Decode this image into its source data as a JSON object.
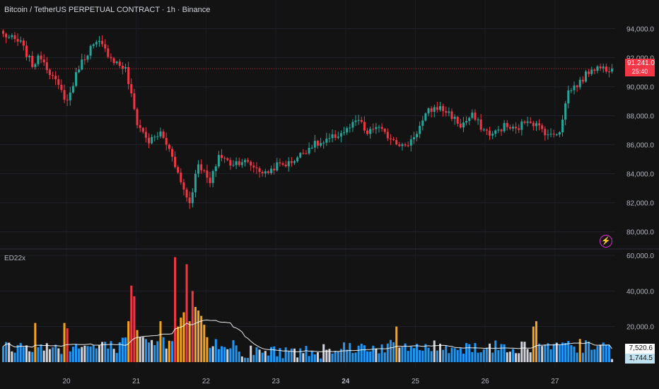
{
  "header": {
    "title": "Bitcoin / TetherUS PERPETUAL CONTRACT · 1h · Binance"
  },
  "indicator": {
    "label": "ED22x"
  },
  "price_badge": {
    "value": "91,241.0",
    "countdown": "25:40"
  },
  "volume_badges": {
    "ma_value": "7,520.6",
    "last_value": "1,744.5"
  },
  "icons": {
    "alert": "lightning-icon"
  },
  "colors": {
    "up": "#26a69a",
    "down": "#f23645",
    "vol_blue": "#2196f3",
    "vol_orange": "#f7a21b",
    "vol_red": "#f23645",
    "vol_white": "#d1d4dc",
    "ma_line": "#ffffff",
    "price_line": "#f23645",
    "background": "#131313"
  },
  "chart_data": [
    {
      "type": "candlestick",
      "title": "Bitcoin / TetherUS PERPETUAL CONTRACT · 1h · Binance",
      "x_tick_labels": [
        "20",
        "21",
        "22",
        "23",
        "24",
        "25",
        "26",
        "27"
      ],
      "y_tick_labels": [
        "94,000.0",
        "92,000.0",
        "90,000.0",
        "88,000.0",
        "86,000.0",
        "84,000.0",
        "82,000.0",
        "80,000.0"
      ],
      "ylim": [
        79500,
        95000
      ],
      "last_price": 91241,
      "anchors": [
        [
          0,
          93600
        ],
        [
          6,
          93000
        ],
        [
          10,
          91500
        ],
        [
          13,
          92100
        ],
        [
          18,
          90300
        ],
        [
          22,
          89000
        ],
        [
          26,
          91400
        ],
        [
          30,
          92700
        ],
        [
          33,
          93000
        ],
        [
          38,
          91800
        ],
        [
          42,
          91200
        ],
        [
          46,
          87500
        ],
        [
          50,
          86200
        ],
        [
          54,
          86800
        ],
        [
          58,
          85300
        ],
        [
          61,
          83400
        ],
        [
          64,
          82000
        ],
        [
          67,
          84800
        ],
        [
          71,
          83300
        ],
        [
          74,
          85300
        ],
        [
          78,
          84700
        ],
        [
          82,
          84900
        ],
        [
          86,
          84500
        ],
        [
          90,
          84000
        ],
        [
          94,
          84600
        ],
        [
          98,
          84700
        ],
        [
          102,
          85300
        ],
        [
          106,
          86000
        ],
        [
          110,
          86100
        ],
        [
          114,
          86600
        ],
        [
          118,
          87000
        ],
        [
          122,
          87700
        ],
        [
          125,
          86700
        ],
        [
          128,
          87300
        ],
        [
          131,
          86700
        ],
        [
          134,
          86400
        ],
        [
          138,
          85800
        ],
        [
          142,
          86900
        ],
        [
          146,
          88300
        ],
        [
          149,
          88600
        ],
        [
          153,
          88200
        ],
        [
          157,
          87300
        ],
        [
          161,
          88000
        ],
        [
          165,
          87000
        ],
        [
          168,
          86700
        ],
        [
          172,
          87300
        ],
        [
          176,
          87000
        ],
        [
          180,
          87800
        ],
        [
          184,
          87200
        ],
        [
          188,
          86600
        ],
        [
          191,
          87000
        ],
        [
          194,
          89700
        ],
        [
          198,
          90300
        ],
        [
          202,
          91300
        ],
        [
          206,
          91300
        ],
        [
          209,
          91241
        ]
      ],
      "volume": {
        "ylim": [
          0,
          62000
        ],
        "y_tick_labels": [
          "60,000.0",
          "40,000.0",
          "20,000.0"
        ],
        "ma_last": 7520.6,
        "last": 1744.5,
        "spikes": [
          {
            "i": 11,
            "v": 22000,
            "c": "orange"
          },
          {
            "i": 21,
            "v": 22000,
            "c": "orange"
          },
          {
            "i": 22,
            "v": 19000,
            "c": "red"
          },
          {
            "i": 43,
            "v": 23000,
            "c": "orange"
          },
          {
            "i": 44,
            "v": 43000,
            "c": "red"
          },
          {
            "i": 45,
            "v": 37000,
            "c": "red"
          },
          {
            "i": 46,
            "v": 18000,
            "c": "orange"
          },
          {
            "i": 54,
            "v": 23000,
            "c": "orange"
          },
          {
            "i": 57,
            "v": 12000,
            "c": "orange"
          },
          {
            "i": 59,
            "v": 59000,
            "c": "red"
          },
          {
            "i": 60,
            "v": 20000,
            "c": "orange"
          },
          {
            "i": 61,
            "v": 25000,
            "c": "orange"
          },
          {
            "i": 62,
            "v": 28000,
            "c": "orange"
          },
          {
            "i": 63,
            "v": 55000,
            "c": "red"
          },
          {
            "i": 64,
            "v": 23000,
            "c": "orange"
          },
          {
            "i": 65,
            "v": 40000,
            "c": "red"
          },
          {
            "i": 66,
            "v": 31000,
            "c": "orange"
          },
          {
            "i": 67,
            "v": 29000,
            "c": "orange"
          },
          {
            "i": 68,
            "v": 26000,
            "c": "orange"
          },
          {
            "i": 69,
            "v": 21000,
            "c": "orange"
          },
          {
            "i": 70,
            "v": 14000,
            "c": "orange"
          },
          {
            "i": 135,
            "v": 20000,
            "c": "orange"
          },
          {
            "i": 182,
            "v": 20000,
            "c": "orange"
          },
          {
            "i": 183,
            "v": 23000,
            "c": "orange"
          },
          {
            "i": 198,
            "v": 13000,
            "c": "orange"
          }
        ]
      }
    }
  ]
}
